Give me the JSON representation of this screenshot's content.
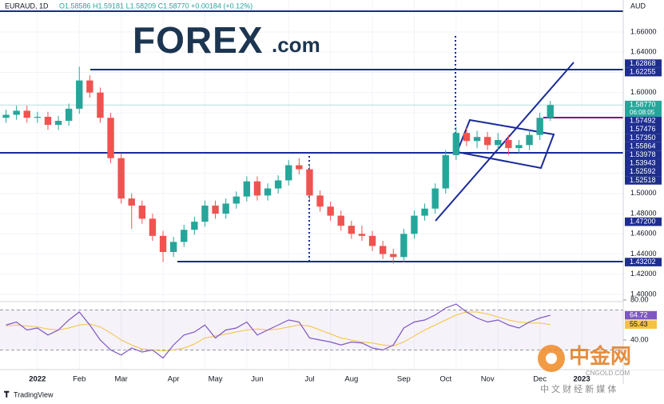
{
  "header": {
    "symbol": "EURAUD, 1D",
    "ohlc": "O1.58586 H1.59181 L1.58209 C1.58770 +0.00184 (+0.12%)",
    "currency": "AUD"
  },
  "logo": {
    "brand": "FOREX",
    "suffix": ".com"
  },
  "footer": {
    "brand": "TradingView"
  },
  "watermark": {
    "name": "中金网",
    "site": "CNGOLD.COM",
    "tagline": "中 文 财 经 新 媒 体"
  },
  "chart_data": [
    {
      "type": "candlestick",
      "categories": [
        null,
        null,
        null,
        "2022",
        null,
        null,
        null,
        "Feb",
        null,
        null,
        null,
        "Mar",
        null,
        null,
        null,
        null,
        "Apr",
        null,
        null,
        null,
        "May",
        null,
        null,
        null,
        "Jun",
        null,
        null,
        null,
        null,
        "Jul",
        null,
        null,
        null,
        "Aug",
        null,
        null,
        null,
        null,
        "Sep",
        null,
        null,
        null,
        "Oct",
        null,
        null,
        null,
        "Nov",
        null,
        null,
        null,
        null,
        "Dec",
        null,
        null,
        null,
        "2023"
      ],
      "open": [
        1.575,
        1.578,
        1.582,
        1.575,
        1.576,
        1.568,
        1.572,
        1.584,
        1.612,
        1.6,
        1.575,
        1.535,
        1.495,
        1.488,
        1.475,
        1.458,
        1.442,
        1.452,
        1.464,
        1.472,
        1.488,
        1.48,
        1.49,
        1.497,
        1.512,
        1.498,
        1.505,
        1.513,
        1.528,
        1.524,
        1.498,
        1.487,
        1.478,
        1.468,
        1.46,
        1.458,
        1.448,
        1.44,
        1.437,
        1.46,
        1.478,
        1.485,
        1.505,
        1.538,
        1.56,
        1.552,
        1.556,
        1.548,
        1.553,
        1.545,
        1.548,
        1.558,
        1.575,
        null,
        null,
        null
      ],
      "high": [
        1.583,
        1.587,
        1.587,
        1.581,
        1.581,
        1.577,
        1.589,
        1.6257,
        1.617,
        1.605,
        1.58,
        1.54,
        1.5,
        1.493,
        1.48,
        1.463,
        1.457,
        1.469,
        1.477,
        1.493,
        1.493,
        1.495,
        1.502,
        1.517,
        1.517,
        1.51,
        1.518,
        1.533,
        1.535,
        1.529,
        1.503,
        1.492,
        1.483,
        1.473,
        1.468,
        1.463,
        1.453,
        1.445,
        1.465,
        1.483,
        1.49,
        1.51,
        1.543,
        1.566,
        1.565,
        1.562,
        1.561,
        1.56,
        1.558,
        1.553,
        1.563,
        1.58,
        1.59181,
        null,
        null,
        null
      ],
      "low": [
        1.57,
        1.573,
        1.57,
        1.57,
        1.563,
        1.563,
        1.567,
        1.579,
        1.595,
        1.57,
        1.53,
        1.49,
        1.465,
        1.47,
        1.453,
        1.432,
        1.437,
        1.447,
        1.459,
        1.467,
        1.475,
        1.475,
        1.485,
        1.492,
        1.493,
        1.493,
        1.5,
        1.508,
        1.519,
        1.493,
        1.482,
        1.473,
        1.463,
        1.455,
        1.453,
        1.443,
        1.435,
        1.4305,
        1.432,
        1.455,
        1.473,
        1.48,
        1.5,
        1.533,
        1.547,
        1.545,
        1.543,
        1.543,
        1.538,
        1.54,
        1.543,
        1.553,
        1.572,
        null,
        null,
        null
      ],
      "close": [
        1.578,
        1.582,
        1.575,
        1.576,
        1.568,
        1.572,
        1.584,
        1.612,
        1.6,
        1.575,
        1.535,
        1.495,
        1.488,
        1.475,
        1.458,
        1.442,
        1.452,
        1.464,
        1.472,
        1.488,
        1.48,
        1.49,
        1.497,
        1.512,
        1.498,
        1.505,
        1.513,
        1.528,
        1.524,
        1.498,
        1.487,
        1.478,
        1.468,
        1.46,
        1.458,
        1.448,
        1.44,
        1.437,
        1.46,
        1.478,
        1.485,
        1.505,
        1.538,
        1.56,
        1.552,
        1.556,
        1.548,
        1.553,
        1.545,
        1.548,
        1.558,
        1.575,
        1.5877,
        null,
        null,
        null
      ],
      "up_color": "#26a69a",
      "down_color": "#ef5350",
      "ylim": [
        1.3984,
        1.6854
      ],
      "yticks": [
        {
          "value": 1.4,
          "label": "1.40000"
        },
        {
          "value": 1.42,
          "label": "1.42000"
        },
        {
          "value": 1.44,
          "label": "1.44000"
        },
        {
          "value": 1.46,
          "label": "1.46000"
        },
        {
          "value": 1.48,
          "label": "1.48000"
        },
        {
          "value": 1.5,
          "label": "1.50000"
        },
        {
          "value": 1.52,
          "label": "1.52000"
        },
        {
          "value": 1.54,
          "label": "1.54000"
        },
        {
          "value": 1.56,
          "label": "1.56000"
        },
        {
          "value": 1.58,
          "label": "1.58000"
        },
        {
          "value": 1.6,
          "label": "1.60000"
        },
        {
          "value": 1.62,
          "label": "1.62000"
        },
        {
          "value": 1.64,
          "label": "1.64000"
        },
        {
          "value": 1.66,
          "label": "1.66000"
        }
      ],
      "grid": true,
      "label_color": "#1e2d8f",
      "price_labels": [
        1.62868,
        1.62255,
        {
          "value": 1.5877,
          "label": "1.58770",
          "time": "06:08:05",
          "color": "#26a69a"
        },
        1.57492,
        1.57476,
        {
          "value": 1.5735,
          "label": "1.57350"
        },
        1.55864,
        1.53978,
        1.53943,
        1.52592,
        1.52518,
        {
          "value": 1.472,
          "label": "1.47200"
        },
        1.43202
      ]
    },
    {
      "type": "line",
      "series": [
        {
          "name": "RSI",
          "color": "#7e57c2",
          "values": [
            55,
            58,
            50,
            52,
            45,
            50,
            60,
            68,
            55,
            40,
            30,
            25,
            32,
            28,
            30,
            22,
            35,
            45,
            48,
            55,
            42,
            50,
            52,
            58,
            45,
            50,
            55,
            60,
            58,
            42,
            40,
            38,
            35,
            38,
            37,
            32,
            30,
            35,
            52,
            58,
            60,
            65,
            72,
            76,
            68,
            62,
            58,
            60,
            55,
            52,
            58,
            62,
            64.72,
            null,
            null,
            null
          ]
        },
        {
          "name": "RSI MA",
          "color": "#f5c242",
          "values": [
            54,
            55,
            54,
            53,
            51,
            50,
            52,
            55,
            56,
            53,
            47,
            40,
            35,
            31,
            30,
            29,
            30,
            32,
            36,
            42,
            44,
            46,
            48,
            50,
            51,
            50,
            51,
            53,
            55,
            54,
            50,
            46,
            42,
            40,
            38,
            37,
            35,
            34,
            38,
            44,
            50,
            55,
            60,
            65,
            68,
            68,
            66,
            63,
            60,
            58,
            57,
            57,
            55.43,
            null,
            null,
            null
          ]
        }
      ],
      "ylim": [
        10.4,
        82.4
      ],
      "yticks": [
        {
          "value": 80,
          "label": "80.00"
        },
        {
          "value": 40,
          "label": "40.00"
        }
      ],
      "bands": [
        70,
        30
      ]
    }
  ]
}
